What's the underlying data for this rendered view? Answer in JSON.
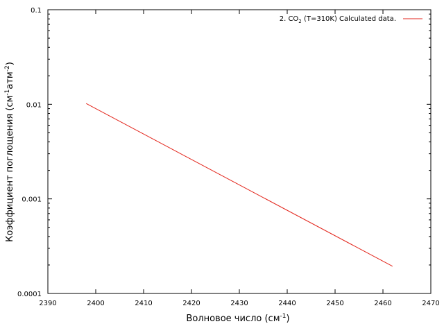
{
  "chart_data": {
    "type": "line",
    "xlabel": "Волновое число (см",
    "xlabel_sup": "-1",
    "xlabel_tail": ")",
    "ylabel": {
      "p1": "Коэффициент поглощения (см",
      "sup1": "-1",
      "p2": "атм",
      "sup2": "-2",
      "p3": ")"
    },
    "xlim": [
      2390,
      2470
    ],
    "ylim": [
      0.0001,
      0.1
    ],
    "yscale": "log",
    "x_ticks": [
      2390,
      2400,
      2410,
      2420,
      2430,
      2440,
      2450,
      2460,
      2470
    ],
    "x_tick_labels": [
      "2390",
      "2400",
      "2410",
      "2420",
      "2430",
      "2440",
      "2450",
      "2460",
      "2470"
    ],
    "y_ticks": [
      0.0001,
      0.001,
      0.01,
      0.1
    ],
    "y_tick_labels": [
      "0.0001",
      "0.001",
      "0.01",
      "0.1"
    ],
    "grid": false,
    "legend_position": "top-right",
    "legend": {
      "p1": "2. CO",
      "sub": "2",
      "p2": " (T=310K) Calculated data."
    },
    "series": [
      {
        "name": "2. CO2 (T=310K) Calculated data.",
        "color": "#e3261c",
        "x": [
          2398,
          2462
        ],
        "y": [
          0.0102,
          0.000194
        ]
      }
    ]
  }
}
